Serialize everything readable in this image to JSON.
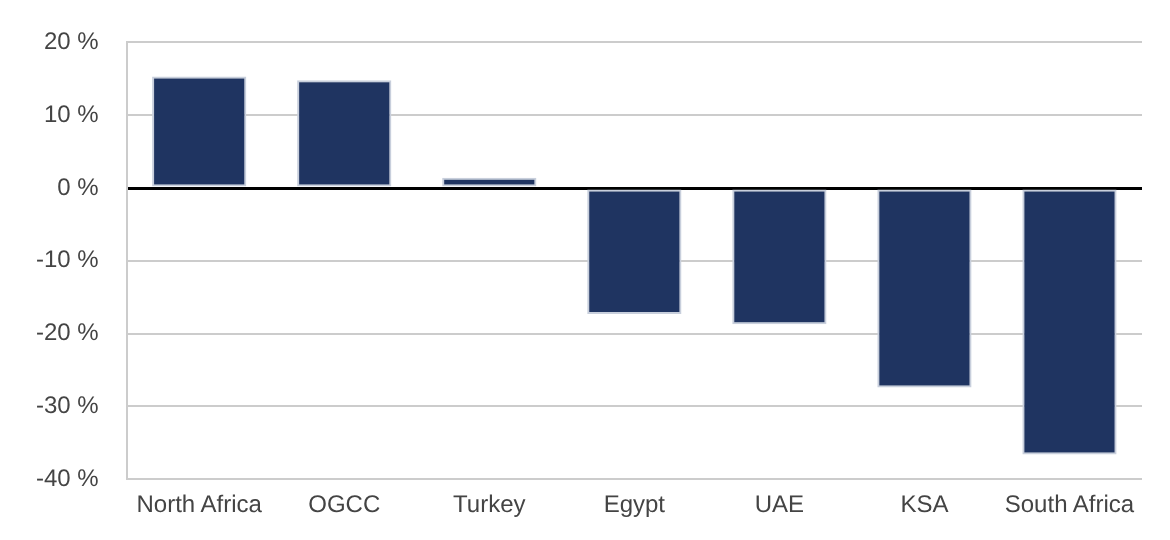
{
  "chart_data": {
    "type": "bar",
    "categories": [
      "North Africa",
      "OGCC",
      "Turkey",
      "Egypt",
      "UAE",
      "KSA",
      "South Africa"
    ],
    "values": [
      15.3,
      14.8,
      1.4,
      -17.3,
      -18.7,
      -27.4,
      -36.6
    ],
    "color": "#1f3461",
    "ylim": [
      -40,
      20
    ],
    "yticks": [
      {
        "value": -40,
        "label": "-40 %"
      },
      {
        "value": -30,
        "label": "-30 %"
      },
      {
        "value": -20,
        "label": "-20 %"
      },
      {
        "value": -10,
        "label": "-10 %"
      },
      {
        "value": 0,
        "label": "0 %"
      },
      {
        "value": 10,
        "label": "10 %"
      },
      {
        "value": 20,
        "label": "20 %"
      }
    ],
    "grid": "y",
    "legend": false
  }
}
